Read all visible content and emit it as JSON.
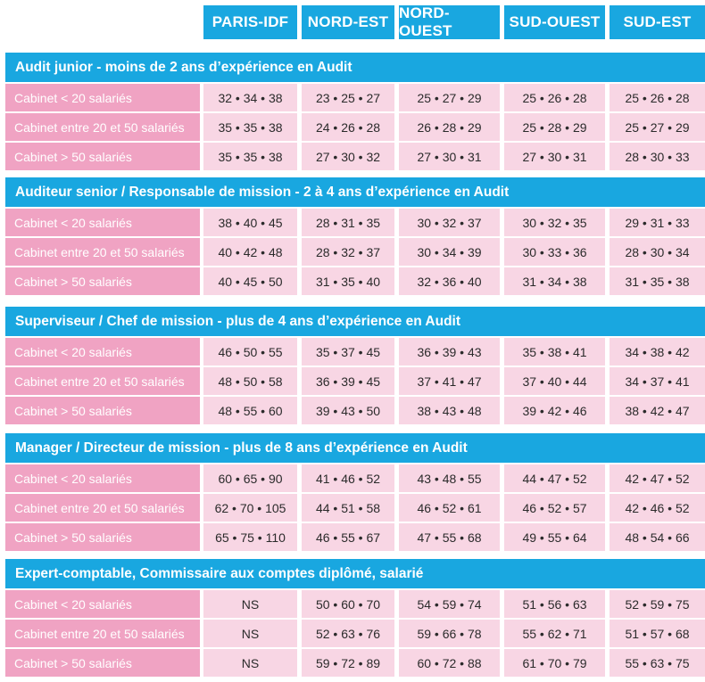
{
  "columns": [
    "PARIS-IDF",
    "NORD-EST",
    "NORD-OUEST",
    "SUD-OUEST",
    "SUD-EST"
  ],
  "sections": [
    {
      "title": "Audit junior - moins de 2 ans d’expérience en Audit",
      "rows": [
        {
          "label": "Cabinet < 20 salariés",
          "values": [
            "32 • 34 • 38",
            "23 • 25 • 27",
            "25 • 27 • 29",
            "25 • 26 • 28",
            "25 • 26 • 28"
          ]
        },
        {
          "label": "Cabinet entre 20 et 50 salariés",
          "values": [
            "35 • 35 • 38",
            "24 • 26 • 28",
            "26 • 28 • 29",
            "25 • 28 • 29",
            "25 • 27 • 29"
          ]
        },
        {
          "label": "Cabinet > 50 salariés",
          "values": [
            "35 • 35 • 38",
            "27 • 30 • 32",
            "27 • 30 • 31",
            "27 • 30 • 31",
            "28 • 30 • 33"
          ]
        }
      ]
    },
    {
      "title": "Auditeur senior / Responsable de mission - 2 à 4 ans d’expérience en Audit",
      "rows": [
        {
          "label": "Cabinet < 20 salariés",
          "values": [
            "38 • 40 • 45",
            "28 • 31 • 35",
            "30 • 32 • 37",
            "30 • 32 • 35",
            "29 • 31 • 33"
          ]
        },
        {
          "label": "Cabinet entre 20 et 50 salariés",
          "values": [
            "40 • 42 • 48",
            "28 • 32 • 37",
            "30 • 34 • 39",
            "30 • 33 • 36",
            "28 • 30 • 34"
          ]
        },
        {
          "label": "Cabinet > 50 salariés",
          "values": [
            "40 • 45 • 50",
            "31 • 35 • 40",
            "32 • 36 • 40",
            "31 • 34 • 38",
            "31 • 35 • 38"
          ]
        }
      ]
    },
    {
      "title": "Superviseur / Chef de mission  - plus de 4 ans d’expérience en Audit",
      "rows": [
        {
          "label": "Cabinet < 20 salariés",
          "values": [
            "46 • 50 • 55",
            "35 • 37 • 45",
            "36 • 39 • 43",
            "35 • 38 • 41",
            "34 • 38 • 42"
          ]
        },
        {
          "label": "Cabinet entre 20 et 50 salariés",
          "values": [
            "48 • 50 • 58",
            "36 • 39 • 45",
            "37 • 41 • 47",
            "37 • 40 • 44",
            "34 • 37 • 41"
          ]
        },
        {
          "label": "Cabinet > 50 salariés",
          "values": [
            "48 • 55 • 60",
            "39 • 43 • 50",
            "38 • 43 • 48",
            "39 • 42 • 46",
            "38 • 42 • 47"
          ]
        }
      ]
    },
    {
      "title": "Manager / Directeur de mission  - plus de 8 ans d’expérience en Audit",
      "rows": [
        {
          "label": "Cabinet < 20 salariés",
          "values": [
            "60 • 65 • 90",
            "41 • 46 • 52",
            "43 • 48 • 55",
            "44 • 47 • 52",
            "42 • 47 • 52"
          ]
        },
        {
          "label": "Cabinet entre 20 et 50 salariés",
          "values": [
            "62 • 70 • 105",
            "44 • 51 • 58",
            "46 • 52 • 61",
            "46 • 52 • 57",
            "42 • 46 • 52"
          ]
        },
        {
          "label": "Cabinet > 50 salariés",
          "values": [
            "65 • 75 • 110",
            "46 • 55 • 67",
            "47 • 55 • 68",
            "49 • 55 • 64",
            "48 • 54 • 66"
          ]
        }
      ]
    },
    {
      "title": "Expert-comptable, Commissaire aux comptes diplômé, salarié",
      "rows": [
        {
          "label": "Cabinet < 20 salariés",
          "values": [
            "NS",
            "50 • 60 • 70",
            "54 • 59 • 74",
            "51 • 56 • 63",
            "52 • 59 • 75"
          ]
        },
        {
          "label": "Cabinet entre 20 et 50 salariés",
          "values": [
            "NS",
            "52 • 63 • 76",
            "59 • 66 • 78",
            "55 • 62 • 71",
            "51 • 57 • 68"
          ]
        },
        {
          "label": "Cabinet > 50 salariés",
          "values": [
            "NS",
            "59 • 72 • 89",
            "60 • 72 • 88",
            "61 • 70 • 79",
            "55 • 63 • 75"
          ]
        }
      ]
    }
  ]
}
